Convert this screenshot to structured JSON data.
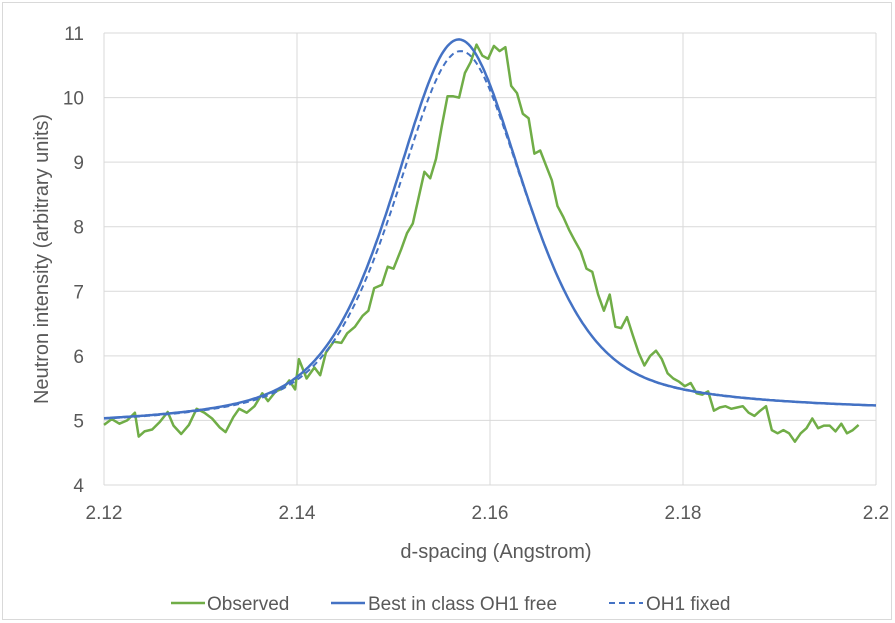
{
  "chart_data": {
    "type": "line",
    "title": "",
    "xlabel": "d-spacing (Angstrom)",
    "ylabel": "Neutron intensity (arbitrary units)",
    "xlim": [
      2.12,
      2.2
    ],
    "ylim": [
      4,
      11
    ],
    "x_ticks": [
      2.12,
      2.14,
      2.16,
      2.18,
      2.2
    ],
    "x_tick_labels": [
      "2.12",
      "2.14",
      "2.16",
      "2.18",
      "2.2"
    ],
    "y_ticks": [
      4,
      5,
      6,
      7,
      8,
      9,
      10,
      11
    ],
    "y_tick_labels": [
      "4",
      "5",
      "6",
      "7",
      "8",
      "9",
      "10",
      "11"
    ],
    "grid": true,
    "legend_position": "bottom",
    "series": [
      {
        "name": "Observed",
        "color": "#70ad47",
        "style": "solid",
        "points": [
          [
            2.12,
            4.93
          ],
          [
            2.1208,
            5.02
          ],
          [
            2.1216,
            4.95
          ],
          [
            2.1224,
            5.0
          ],
          [
            2.1232,
            5.12
          ],
          [
            2.1236,
            4.75
          ],
          [
            2.1242,
            4.83
          ],
          [
            2.125,
            4.86
          ],
          [
            2.1258,
            4.98
          ],
          [
            2.1266,
            5.13
          ],
          [
            2.1272,
            4.92
          ],
          [
            2.128,
            4.79
          ],
          [
            2.1288,
            4.93
          ],
          [
            2.1296,
            5.18
          ],
          [
            2.1304,
            5.12
          ],
          [
            2.1312,
            5.03
          ],
          [
            2.132,
            4.89
          ],
          [
            2.1326,
            4.82
          ],
          [
            2.1334,
            5.05
          ],
          [
            2.134,
            5.18
          ],
          [
            2.1348,
            5.12
          ],
          [
            2.1356,
            5.22
          ],
          [
            2.1364,
            5.42
          ],
          [
            2.137,
            5.3
          ],
          [
            2.1378,
            5.45
          ],
          [
            2.1386,
            5.5
          ],
          [
            2.1392,
            5.62
          ],
          [
            2.1398,
            5.48
          ],
          [
            2.1402,
            5.95
          ],
          [
            2.141,
            5.65
          ],
          [
            2.1418,
            5.82
          ],
          [
            2.1424,
            5.7
          ],
          [
            2.143,
            6.05
          ],
          [
            2.1438,
            6.22
          ],
          [
            2.1446,
            6.2
          ],
          [
            2.1452,
            6.35
          ],
          [
            2.146,
            6.45
          ],
          [
            2.1468,
            6.62
          ],
          [
            2.1474,
            6.7
          ],
          [
            2.148,
            7.05
          ],
          [
            2.1488,
            7.1
          ],
          [
            2.1494,
            7.38
          ],
          [
            2.15,
            7.35
          ],
          [
            2.1508,
            7.65
          ],
          [
            2.1514,
            7.9
          ],
          [
            2.152,
            8.05
          ],
          [
            2.1526,
            8.45
          ],
          [
            2.1532,
            8.85
          ],
          [
            2.1538,
            8.75
          ],
          [
            2.1544,
            9.05
          ],
          [
            2.155,
            9.55
          ],
          [
            2.1556,
            10.02
          ],
          [
            2.1562,
            10.02
          ],
          [
            2.1568,
            10.0
          ],
          [
            2.1574,
            10.38
          ],
          [
            2.158,
            10.55
          ],
          [
            2.1586,
            10.82
          ],
          [
            2.1592,
            10.65
          ],
          [
            2.1598,
            10.6
          ],
          [
            2.1604,
            10.8
          ],
          [
            2.161,
            10.72
          ],
          [
            2.1616,
            10.78
          ],
          [
            2.1622,
            10.18
          ],
          [
            2.1628,
            10.07
          ],
          [
            2.1634,
            9.75
          ],
          [
            2.164,
            9.68
          ],
          [
            2.1646,
            9.13
          ],
          [
            2.1652,
            9.18
          ],
          [
            2.1658,
            8.95
          ],
          [
            2.1664,
            8.72
          ],
          [
            2.167,
            8.32
          ],
          [
            2.1676,
            8.15
          ],
          [
            2.1682,
            7.95
          ],
          [
            2.1688,
            7.78
          ],
          [
            2.1694,
            7.62
          ],
          [
            2.17,
            7.35
          ],
          [
            2.1706,
            7.3
          ],
          [
            2.1712,
            6.95
          ],
          [
            2.1718,
            6.7
          ],
          [
            2.1724,
            6.95
          ],
          [
            2.173,
            6.45
          ],
          [
            2.1736,
            6.43
          ],
          [
            2.1742,
            6.6
          ],
          [
            2.1748,
            6.32
          ],
          [
            2.1754,
            6.05
          ],
          [
            2.176,
            5.85
          ],
          [
            2.1766,
            6.0
          ],
          [
            2.1772,
            6.08
          ],
          [
            2.1778,
            5.95
          ],
          [
            2.1784,
            5.73
          ],
          [
            2.179,
            5.65
          ],
          [
            2.1796,
            5.6
          ],
          [
            2.1802,
            5.53
          ],
          [
            2.1808,
            5.58
          ],
          [
            2.1814,
            5.42
          ],
          [
            2.182,
            5.4
          ],
          [
            2.1826,
            5.45
          ],
          [
            2.1832,
            5.15
          ],
          [
            2.1838,
            5.2
          ],
          [
            2.1844,
            5.22
          ],
          [
            2.185,
            5.18
          ],
          [
            2.1856,
            5.2
          ],
          [
            2.1862,
            5.22
          ],
          [
            2.1868,
            5.12
          ],
          [
            2.1874,
            5.07
          ],
          [
            2.188,
            5.15
          ],
          [
            2.1886,
            5.22
          ],
          [
            2.1892,
            4.85
          ],
          [
            2.1898,
            4.8
          ],
          [
            2.1904,
            4.85
          ],
          [
            2.191,
            4.8
          ],
          [
            2.1916,
            4.67
          ],
          [
            2.1922,
            4.8
          ],
          [
            2.1928,
            4.88
          ],
          [
            2.1934,
            5.03
          ],
          [
            2.194,
            4.88
          ],
          [
            2.1946,
            4.92
          ],
          [
            2.1952,
            4.92
          ],
          [
            2.1958,
            4.83
          ],
          [
            2.1964,
            4.95
          ],
          [
            2.197,
            4.8
          ],
          [
            2.1976,
            4.85
          ],
          [
            2.1982,
            4.93
          ]
        ]
      },
      {
        "name": "Best in class OH1 free",
        "color": "#4472c4",
        "style": "solid",
        "peak": {
          "center": 2.1567,
          "amplitude": 5.9,
          "baseline_left": 4.88,
          "baseline_right": 5.12,
          "hwhm": 0.0082,
          "shape": "pseudo-voigt",
          "eta": 0.55
        }
      },
      {
        "name": "OH1 fixed",
        "color": "#4472c4",
        "style": "dashed",
        "peak": {
          "center": 2.1569,
          "amplitude": 5.72,
          "baseline_left": 4.88,
          "baseline_right": 5.12,
          "hwhm": 0.0082,
          "shape": "pseudo-voigt",
          "eta": 0.55
        }
      }
    ]
  }
}
